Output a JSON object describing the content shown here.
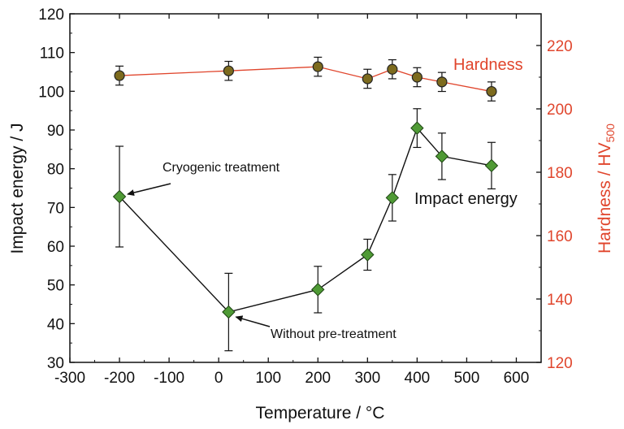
{
  "chart_data": {
    "type": "line",
    "xlabel": "Temperature / °C",
    "ylabel_left": "Impact energy / J",
    "ylabel_right_main": "Hardness / HV",
    "ylabel_right_sub": "500",
    "xlim": [
      -300,
      650
    ],
    "ylim_left": [
      30,
      120
    ],
    "ylim_right": [
      120,
      230
    ],
    "xticks": [
      "-300",
      "-200",
      "-100",
      "0",
      "100",
      "200",
      "300",
      "400",
      "500",
      "600"
    ],
    "yticks_left": [
      "30",
      "40",
      "50",
      "60",
      "70",
      "80",
      "90",
      "100",
      "110",
      "120"
    ],
    "yticks_right": [
      "120",
      "140",
      "160",
      "180",
      "200",
      "220"
    ],
    "grid": false,
    "series": [
      {
        "name": "Impact energy",
        "axis": "left",
        "marker": "diamond",
        "color": "#111111",
        "marker_fill": "#4f9a35",
        "x": [
          -200,
          20,
          200,
          300,
          350,
          400,
          450,
          550
        ],
        "y": [
          72.8,
          43.0,
          48.8,
          57.8,
          72.5,
          90.5,
          83.2,
          80.8
        ],
        "err": [
          13.0,
          10.0,
          6.0,
          4.0,
          6.0,
          5.0,
          6.0,
          6.0
        ]
      },
      {
        "name": "Hardness",
        "axis": "right",
        "marker": "circle",
        "color": "#e0452c",
        "marker_fill": "#7d6b1e",
        "x": [
          -200,
          20,
          200,
          300,
          350,
          400,
          450,
          550
        ],
        "y": [
          210.5,
          212.0,
          213.3,
          209.5,
          212.5,
          210.0,
          208.5,
          205.5
        ],
        "err": [
          3.0,
          3.0,
          3.0,
          3.0,
          3.0,
          3.0,
          3.0,
          3.0
        ]
      }
    ],
    "annotations": [
      {
        "text": "Cryogenic treatment",
        "x": -200,
        "y": 72.8
      },
      {
        "text": "Without pre-treatment",
        "x": 20,
        "y": 43.0
      }
    ]
  }
}
